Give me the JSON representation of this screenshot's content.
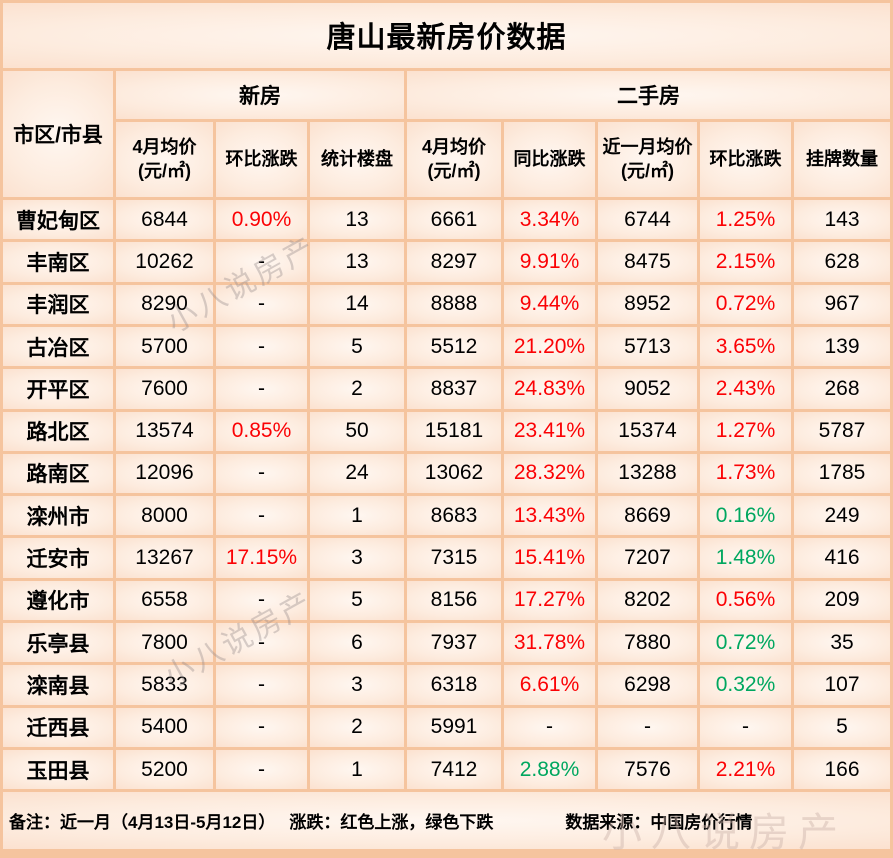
{
  "title": "唐山最新房价数据",
  "table": {
    "corner_header": "市区/市县",
    "group_headers": [
      {
        "label": "新房",
        "span": 3
      },
      {
        "label": "二手房",
        "span": 5
      }
    ],
    "sub_headers": [
      "4月均价 (元/㎡)",
      "环比涨跌",
      "统计楼盘",
      "4月均价 (元/㎡)",
      "同比涨跌",
      "近一月均价(元/㎡)",
      "环比涨跌",
      "挂牌数量"
    ],
    "rows": [
      {
        "name": "曹妃甸区",
        "values": [
          "6844",
          "0.90%",
          "13",
          "6661",
          "3.34%",
          "6744",
          "1.25%",
          "143"
        ],
        "colors": [
          "k",
          "r",
          "k",
          "k",
          "r",
          "k",
          "r",
          "k"
        ]
      },
      {
        "name": "丰南区",
        "values": [
          "10262",
          "-",
          "13",
          "8297",
          "9.91%",
          "8475",
          "2.15%",
          "628"
        ],
        "colors": [
          "k",
          "k",
          "k",
          "k",
          "r",
          "k",
          "r",
          "k"
        ]
      },
      {
        "name": "丰润区",
        "values": [
          "8290",
          "-",
          "14",
          "8888",
          "9.44%",
          "8952",
          "0.72%",
          "967"
        ],
        "colors": [
          "k",
          "k",
          "k",
          "k",
          "r",
          "k",
          "r",
          "k"
        ]
      },
      {
        "name": "古冶区",
        "values": [
          "5700",
          "-",
          "5",
          "5512",
          "21.20%",
          "5713",
          "3.65%",
          "139"
        ],
        "colors": [
          "k",
          "k",
          "k",
          "k",
          "r",
          "k",
          "r",
          "k"
        ]
      },
      {
        "name": "开平区",
        "values": [
          "7600",
          "-",
          "2",
          "8837",
          "24.83%",
          "9052",
          "2.43%",
          "268"
        ],
        "colors": [
          "k",
          "k",
          "k",
          "k",
          "r",
          "k",
          "r",
          "k"
        ]
      },
      {
        "name": "路北区",
        "values": [
          "13574",
          "0.85%",
          "50",
          "15181",
          "23.41%",
          "15374",
          "1.27%",
          "5787"
        ],
        "colors": [
          "k",
          "r",
          "k",
          "k",
          "r",
          "k",
          "r",
          "k"
        ]
      },
      {
        "name": "路南区",
        "values": [
          "12096",
          "-",
          "24",
          "13062",
          "28.32%",
          "13288",
          "1.73%",
          "1785"
        ],
        "colors": [
          "k",
          "k",
          "k",
          "k",
          "r",
          "k",
          "r",
          "k"
        ]
      },
      {
        "name": "滦州市",
        "values": [
          "8000",
          "-",
          "1",
          "8683",
          "13.43%",
          "8669",
          "0.16%",
          "249"
        ],
        "colors": [
          "k",
          "k",
          "k",
          "k",
          "r",
          "k",
          "g",
          "k"
        ]
      },
      {
        "name": "迁安市",
        "values": [
          "13267",
          "17.15%",
          "3",
          "7315",
          "15.41%",
          "7207",
          "1.48%",
          "416"
        ],
        "colors": [
          "k",
          "r",
          "k",
          "k",
          "r",
          "k",
          "g",
          "k"
        ]
      },
      {
        "name": "遵化市",
        "values": [
          "6558",
          "-",
          "5",
          "8156",
          "17.27%",
          "8202",
          "0.56%",
          "209"
        ],
        "colors": [
          "k",
          "k",
          "k",
          "k",
          "r",
          "k",
          "r",
          "k"
        ]
      },
      {
        "name": "乐亭县",
        "values": [
          "7800",
          "-",
          "6",
          "7937",
          "31.78%",
          "7880",
          "0.72%",
          "35"
        ],
        "colors": [
          "k",
          "k",
          "k",
          "k",
          "r",
          "k",
          "g",
          "k"
        ]
      },
      {
        "name": "滦南县",
        "values": [
          "5833",
          "-",
          "3",
          "6318",
          "6.61%",
          "6298",
          "0.32%",
          "107"
        ],
        "colors": [
          "k",
          "k",
          "k",
          "k",
          "r",
          "k",
          "g",
          "k"
        ]
      },
      {
        "name": "迁西县",
        "values": [
          "5400",
          "-",
          "2",
          "5991",
          "-",
          "-",
          "-",
          "5"
        ],
        "colors": [
          "k",
          "k",
          "k",
          "k",
          "k",
          "k",
          "k",
          "k"
        ]
      },
      {
        "name": "玉田县",
        "values": [
          "5200",
          "-",
          "1",
          "7412",
          "2.88%",
          "7576",
          "2.21%",
          "166"
        ],
        "colors": [
          "k",
          "k",
          "k",
          "k",
          "g",
          "k",
          "r",
          "k"
        ]
      }
    ]
  },
  "footer": {
    "note1": "备注：近一月（4月13日-5月12日）",
    "note2": "涨跌：红色上涨，绿色下跌",
    "source": "数据来源：中国房价行情"
  },
  "legend_colors": {
    "up": "#fb0205",
    "down": "#00a75f"
  },
  "watermarks": [
    {
      "text": "小八说房产"
    },
    {
      "text": "小八说房产"
    },
    {
      "text": "小八说房产"
    }
  ]
}
